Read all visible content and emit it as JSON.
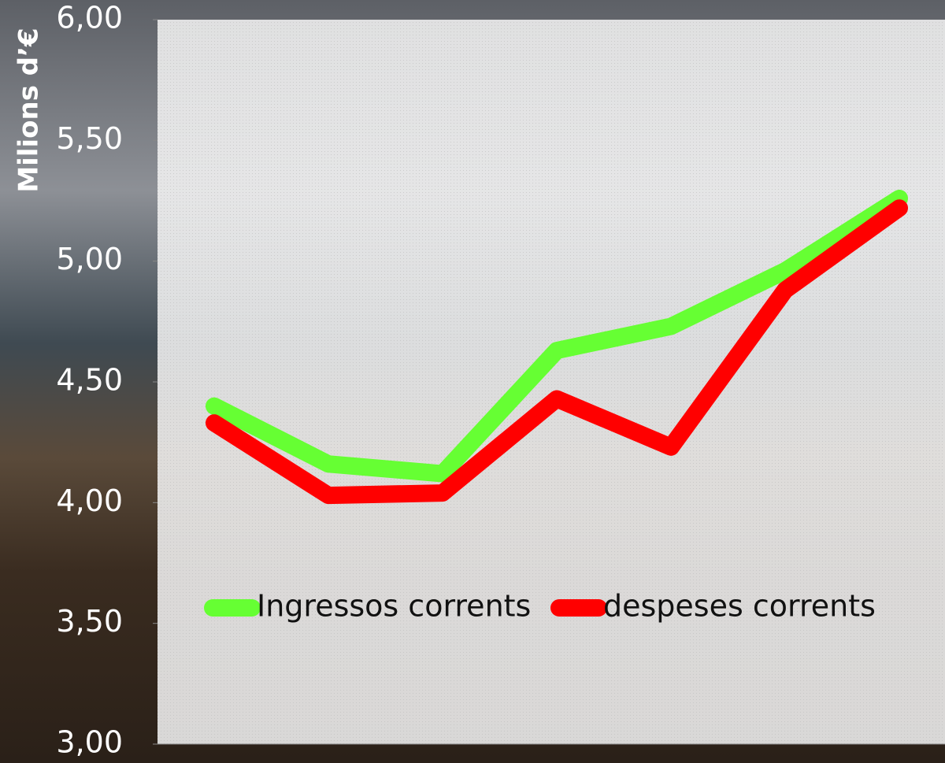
{
  "chart_data": {
    "type": "line",
    "ylabel": "Milions d’€",
    "categories": [
      null,
      null,
      null,
      null,
      null,
      null,
      null
    ],
    "series": [
      {
        "name": "Ingressos corrents",
        "color": "#66ff33",
        "values": [
          4.4,
          4.16,
          4.12,
          4.63,
          4.73,
          4.96,
          5.26
        ]
      },
      {
        "name": "despeses corrents",
        "color": "#ff0000",
        "values": [
          4.33,
          4.03,
          4.04,
          4.43,
          4.23,
          4.88,
          5.22
        ]
      }
    ],
    "ylim": [
      3,
      6
    ],
    "yticks": [
      {
        "value": 3,
        "label": "3,00"
      },
      {
        "value": 3.5,
        "label": "3,50"
      },
      {
        "value": 4,
        "label": "4,00"
      },
      {
        "value": 4.5,
        "label": "4,50"
      },
      {
        "value": 5,
        "label": "5,00"
      },
      {
        "value": 5.5,
        "label": "5,50"
      },
      {
        "value": 6,
        "label": "6,00"
      }
    ],
    "legend": "inside-bottom"
  }
}
